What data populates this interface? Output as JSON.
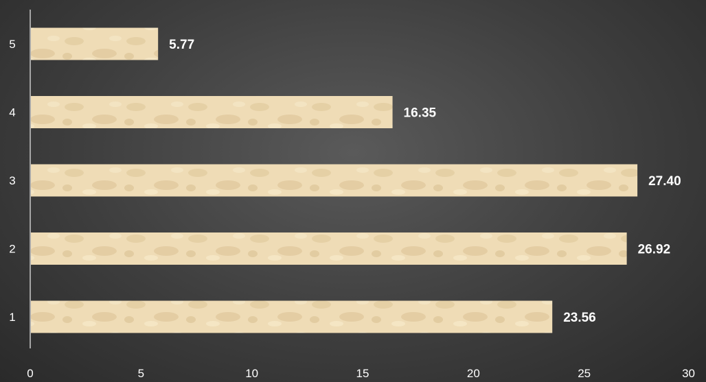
{
  "chart_data": {
    "type": "bar",
    "orientation": "horizontal",
    "categories": [
      "1",
      "2",
      "3",
      "4",
      "5"
    ],
    "values": [
      23.56,
      26.92,
      27.4,
      16.35,
      5.77
    ],
    "value_labels": [
      "23.56",
      "26.92",
      "27.40",
      "16.35",
      "5.77"
    ],
    "x_ticks": [
      "0",
      "5",
      "10",
      "15",
      "20",
      "25",
      "30"
    ],
    "xlim": [
      0,
      30
    ],
    "title": "",
    "xlabel": "",
    "ylabel": "",
    "grid": false,
    "legend": "none",
    "colors": {
      "bar_fill": "#efdcb6",
      "bar_texture": "#d9c196",
      "axis": "#a6a6a6",
      "text": "#ffffff"
    }
  }
}
